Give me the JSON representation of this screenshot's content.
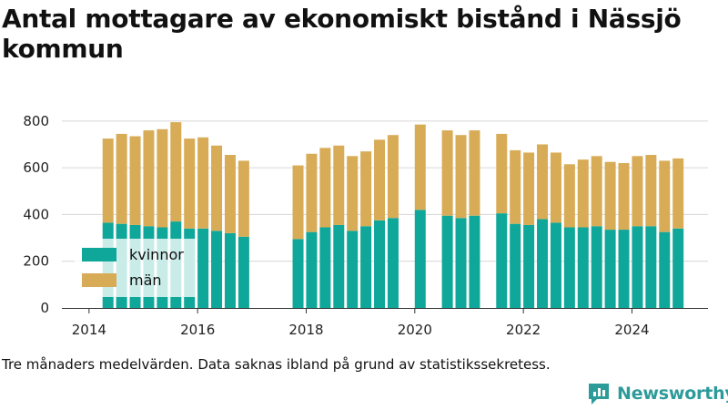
{
  "title": "Antal mottagare av ekonomiskt bistånd i Nässjö kommun",
  "caption": "Tre månaders medelvärden. Data saknas ibland på grund av statistikssekretess.",
  "brand": {
    "name": "Newsworthy",
    "icon": "newsworthy-logo-icon"
  },
  "chart_data": {
    "type": "bar",
    "stacked": true,
    "title": "Antal mottagare av ekonomiskt bistånd i Nässjö kommun",
    "xlabel": "",
    "ylabel": "",
    "ylim": [
      0,
      850
    ],
    "xlim": [
      2013.5,
      2025.4
    ],
    "yticks": [
      0,
      200,
      400,
      600,
      800
    ],
    "xticks": [
      2014,
      2016,
      2018,
      2020,
      2022,
      2024
    ],
    "grid": "horizontal",
    "legend_position": "left",
    "x": [
      2014.35,
      2014.6,
      2014.85,
      2015.1,
      2015.35,
      2015.6,
      2015.85,
      2016.1,
      2016.35,
      2016.6,
      2016.85,
      2017.85,
      2018.1,
      2018.35,
      2018.6,
      2018.85,
      2019.1,
      2019.35,
      2019.6,
      2020.1,
      2020.6,
      2020.85,
      2021.1,
      2021.6,
      2021.85,
      2022.1,
      2022.35,
      2022.6,
      2022.85,
      2023.1,
      2023.35,
      2023.6,
      2023.85,
      2024.1,
      2024.35,
      2024.6,
      2024.85
    ],
    "series": [
      {
        "name": "kvinnor",
        "color": "#0ea79a",
        "values": [
          365,
          360,
          355,
          350,
          345,
          370,
          340,
          340,
          330,
          320,
          305,
          295,
          325,
          345,
          355,
          330,
          350,
          375,
          385,
          420,
          395,
          385,
          395,
          405,
          360,
          355,
          380,
          365,
          345,
          345,
          350,
          335,
          335,
          350,
          350,
          325,
          340
        ]
      },
      {
        "name": "män",
        "color": "#d8ac57",
        "values": [
          360,
          385,
          380,
          410,
          420,
          425,
          385,
          390,
          365,
          335,
          325,
          315,
          335,
          340,
          340,
          320,
          320,
          345,
          355,
          365,
          365,
          355,
          365,
          340,
          315,
          310,
          320,
          300,
          270,
          290,
          300,
          290,
          285,
          300,
          305,
          305,
          300
        ]
      }
    ]
  }
}
